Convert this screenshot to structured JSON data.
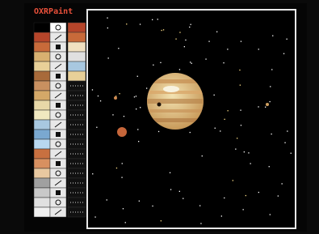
{
  "app": {
    "title": "OXRPaint"
  }
}
